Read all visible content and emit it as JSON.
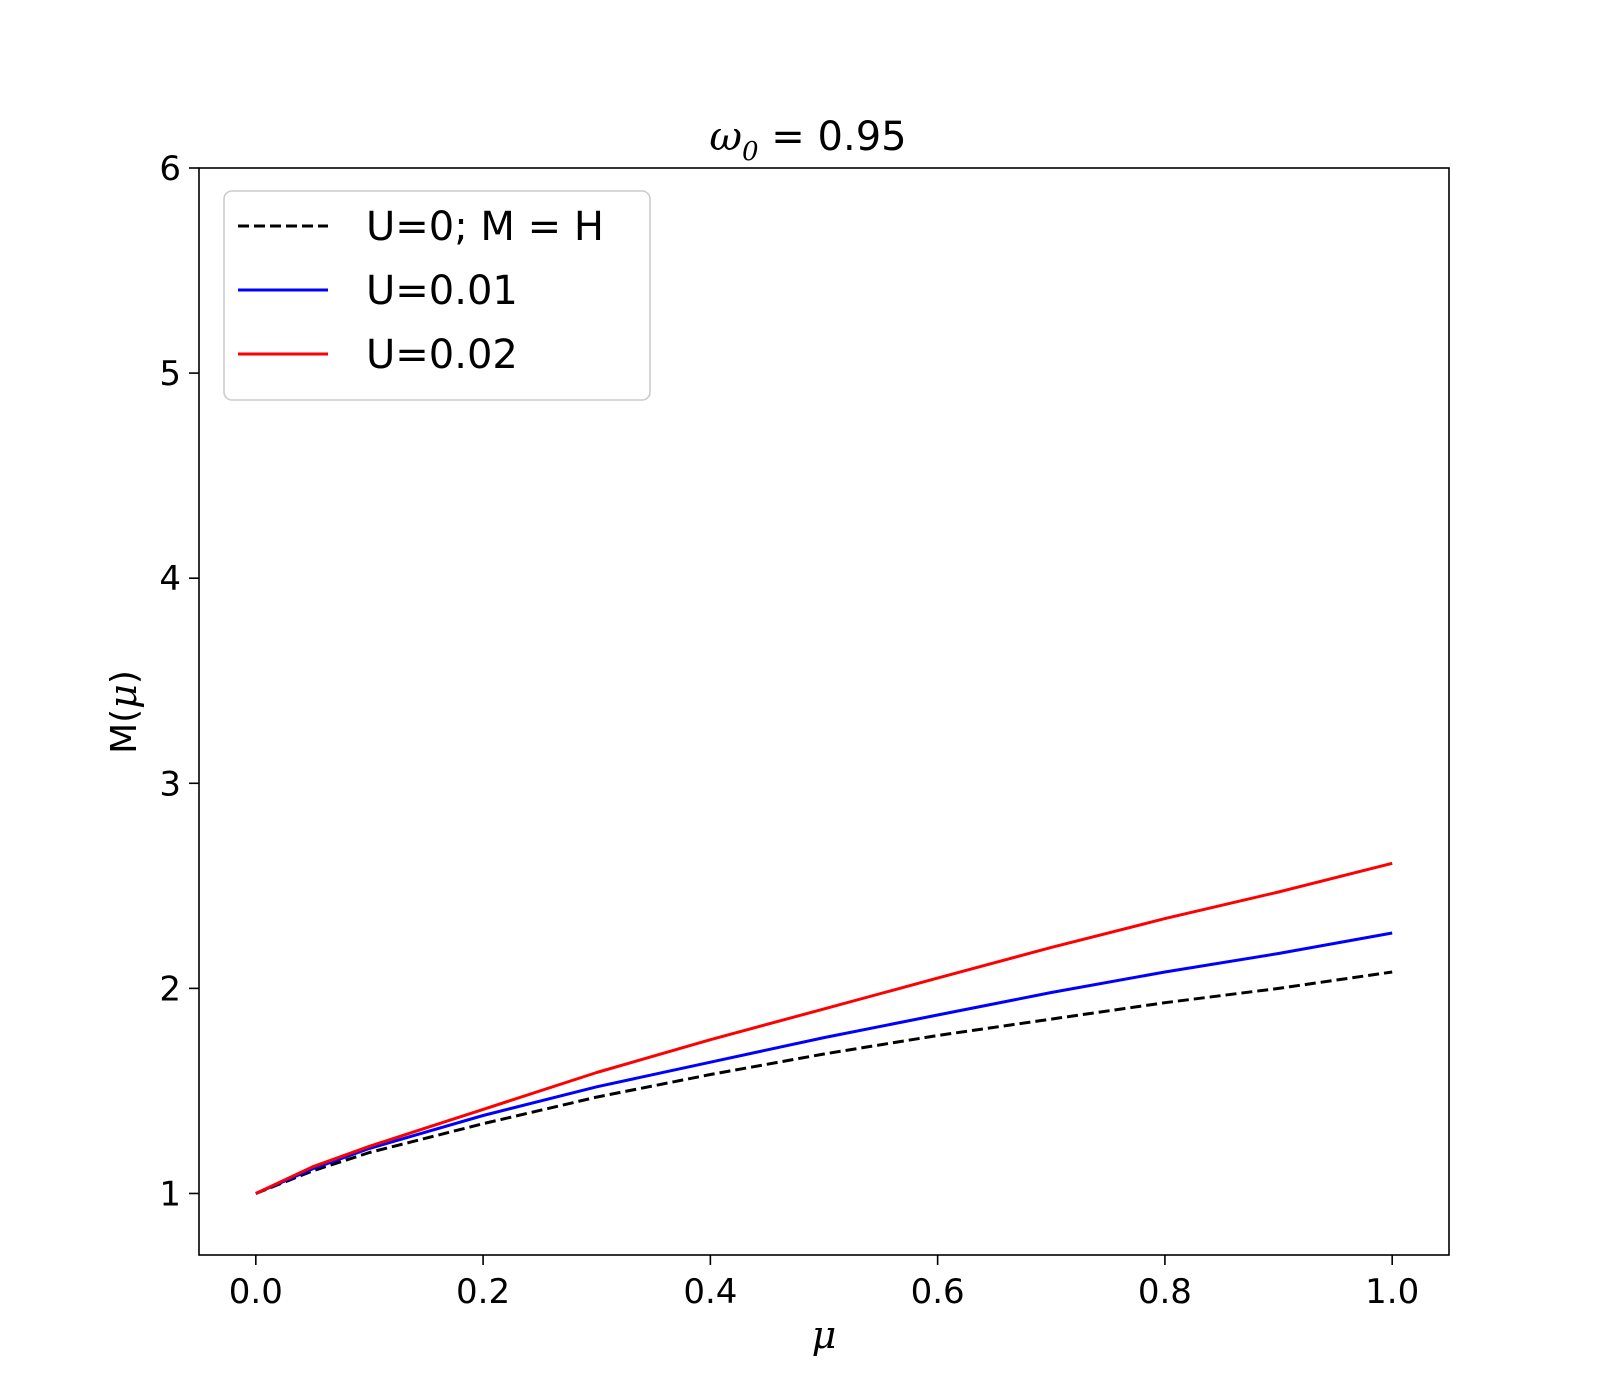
{
  "chart_data": {
    "type": "line",
    "title": {
      "symbol": "ω",
      "subscript": "0",
      "relation": " = 0.95"
    },
    "xlabel": "μ",
    "ylabel": {
      "prefix": "M(",
      "symbol": "μ",
      "suffix": ")"
    },
    "xlim": [
      -0.05,
      1.05
    ],
    "ylim": [
      0.7,
      6.0
    ],
    "xticks": [
      0.0,
      0.2,
      0.4,
      0.6,
      0.8,
      1.0
    ],
    "xtick_labels": [
      "0.0",
      "0.2",
      "0.4",
      "0.6",
      "0.8",
      "1.0"
    ],
    "yticks": [
      1,
      2,
      3,
      4,
      5,
      6
    ],
    "ytick_labels": [
      "1",
      "2",
      "3",
      "4",
      "5",
      "6"
    ],
    "grid": false,
    "legend_position": "upper-left",
    "x": [
      0.0,
      0.05,
      0.1,
      0.15,
      0.2,
      0.3,
      0.4,
      0.5,
      0.6,
      0.7,
      0.8,
      0.9,
      1.0
    ],
    "series": [
      {
        "name": "U=0; M = H",
        "color": "#000000",
        "dash": "dashed",
        "values": [
          1.0,
          1.11,
          1.2,
          1.27,
          1.34,
          1.47,
          1.58,
          1.68,
          1.77,
          1.85,
          1.93,
          2.0,
          2.08
        ]
      },
      {
        "name": "U=0.01",
        "color": "#0000ff",
        "dash": "solid",
        "values": [
          1.0,
          1.12,
          1.22,
          1.3,
          1.38,
          1.52,
          1.64,
          1.76,
          1.87,
          1.98,
          2.08,
          2.17,
          2.27
        ]
      },
      {
        "name": "U=0.02",
        "color": "#ff0000",
        "dash": "solid",
        "values": [
          1.0,
          1.13,
          1.23,
          1.32,
          1.41,
          1.59,
          1.75,
          1.9,
          2.05,
          2.2,
          2.34,
          2.47,
          2.61
        ]
      }
    ]
  }
}
